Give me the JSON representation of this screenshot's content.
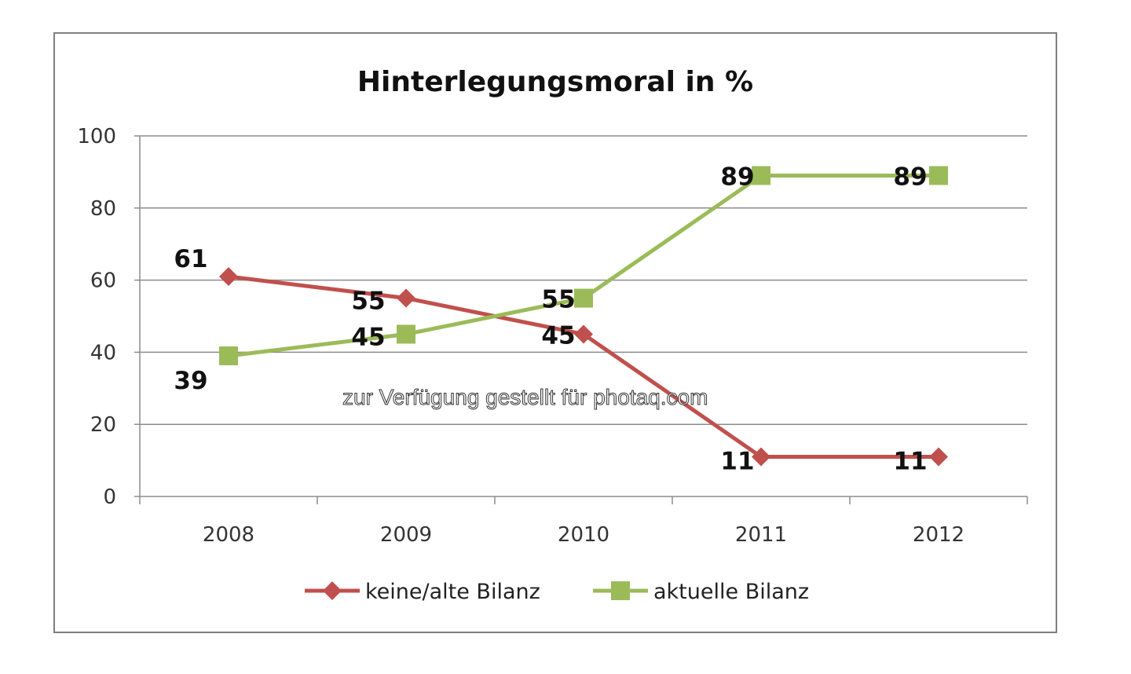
{
  "chart_data": {
    "type": "line",
    "title": "Hinterlegungsmoral in %",
    "categories": [
      "2008",
      "2009",
      "2010",
      "2011",
      "2012"
    ],
    "ylim": [
      0,
      100
    ],
    "yticks": [
      "0",
      "20",
      "40",
      "60",
      "80",
      "100"
    ],
    "grid": true,
    "legend": "bottom",
    "series": [
      {
        "name": "keine/alte Bilanz",
        "values": [
          61,
          55,
          45,
          11,
          11
        ],
        "color": "#c0504d",
        "marker": "diamond",
        "labels": [
          "61",
          "55",
          "45",
          "11",
          "11"
        ]
      },
      {
        "name": "aktuelle Bilanz",
        "values": [
          39,
          45,
          55,
          89,
          89
        ],
        "color": "#9bbb59",
        "marker": "square",
        "labels": [
          "39",
          "45",
          "55",
          "89",
          "89"
        ]
      }
    ]
  },
  "watermark": "zur Verfügung gestellt für photaq.com"
}
